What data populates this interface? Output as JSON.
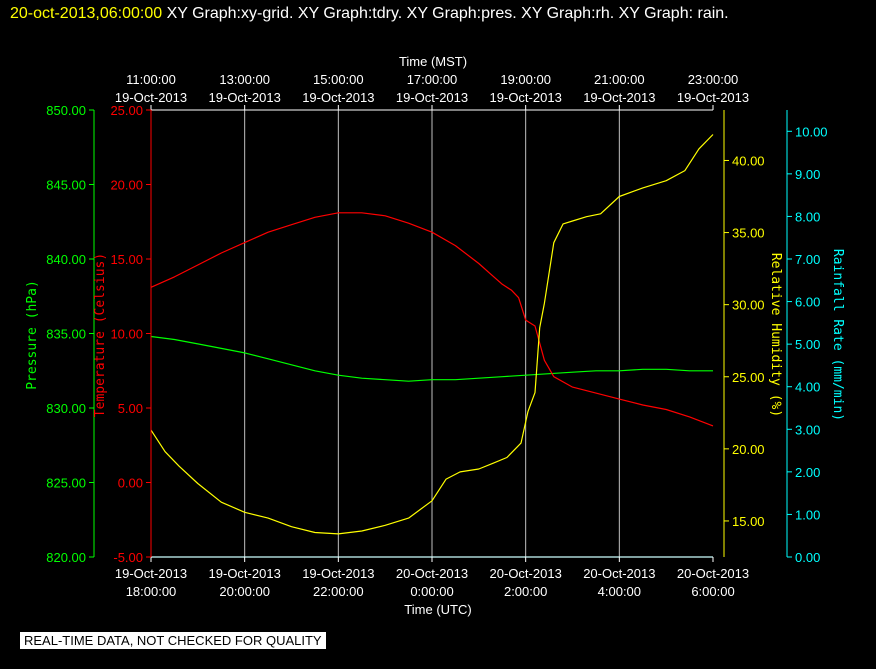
{
  "header": {
    "timestamp": "20-oct-2013,06:00:00",
    "title": " XY Graph:xy-grid.  XY Graph:tdry.  XY Graph:pres.  XY Graph:rh.  XY Graph: rain."
  },
  "disclaimer": "REAL-TIME DATA, NOT CHECKED FOR QUALITY",
  "colors": {
    "background": "#000000",
    "grid": "#c0c0c0",
    "pressure": "#00ff00",
    "temperature": "#ff0000",
    "humidity": "#ffff00",
    "rain": "#00ffff",
    "text": "#ffffff"
  },
  "chart_data": {
    "type": "line",
    "grid": true,
    "top_axis": {
      "label": "Time (MST)",
      "ticks": [
        [
          "11:00:00",
          "19-Oct-2013"
        ],
        [
          "13:00:00",
          "19-Oct-2013"
        ],
        [
          "15:00:00",
          "19-Oct-2013"
        ],
        [
          "17:00:00",
          "19-Oct-2013"
        ],
        [
          "19:00:00",
          "19-Oct-2013"
        ],
        [
          "21:00:00",
          "19-Oct-2013"
        ],
        [
          "23:00:00",
          "19-Oct-2013"
        ]
      ]
    },
    "bottom_axis": {
      "label": "Time (UTC)",
      "ticks": [
        [
          "19-Oct-2013",
          "18:00:00"
        ],
        [
          "19-Oct-2013",
          "20:00:00"
        ],
        [
          "19-Oct-2013",
          "22:00:00"
        ],
        [
          "20-Oct-2013",
          "0:00:00"
        ],
        [
          "20-Oct-2013",
          "2:00:00"
        ],
        [
          "20-Oct-2013",
          "4:00:00"
        ],
        [
          "20-Oct-2013",
          "6:00:00"
        ]
      ]
    },
    "x_unit": "hours since 19-Oct-2013 18:00:00 UTC",
    "xlim": [
      0,
      12
    ],
    "axes": {
      "pressure": {
        "label": "Pressure (hPa)",
        "ylim": [
          820,
          850
        ],
        "ticks": [
          "850.00",
          "845.00",
          "840.00",
          "835.00",
          "830.00",
          "825.00",
          "820.00"
        ]
      },
      "temperature": {
        "label": "Temperature (Celsius)",
        "ylim": [
          -5,
          25
        ],
        "ticks": [
          "25.00",
          "20.00",
          "15.00",
          "10.00",
          "5.00",
          "0.00",
          "-5.00"
        ]
      },
      "humidity": {
        "label": "Relative Humidity (%)",
        "ylim": [
          12.5,
          43.5
        ],
        "ticks": [
          "40.00",
          "35.00",
          "30.00",
          "25.00",
          "20.00",
          "15.00"
        ]
      },
      "rain": {
        "label": "Rainfall Rate (mm/min)",
        "ylim": [
          0,
          10.5
        ],
        "ticks": [
          "10.00",
          "9.00",
          "8.00",
          "7.00",
          "6.00",
          "5.00",
          "4.00",
          "3.00",
          "2.00",
          "1.00",
          "0.00"
        ]
      }
    },
    "series": [
      {
        "name": "pressure",
        "axis": "pressure",
        "x": [
          0,
          0.5,
          1,
          1.5,
          2,
          2.5,
          3,
          3.5,
          4,
          4.5,
          5,
          5.5,
          6,
          6.5,
          7,
          7.5,
          8,
          8.5,
          9,
          9.5,
          10,
          10.5,
          11,
          11.5,
          12
        ],
        "y": [
          834.8,
          834.6,
          834.3,
          834.0,
          833.7,
          833.3,
          832.9,
          832.5,
          832.2,
          832.0,
          831.9,
          831.8,
          831.9,
          831.9,
          832.0,
          832.1,
          832.2,
          832.3,
          832.4,
          832.5,
          832.5,
          832.6,
          832.6,
          832.5,
          832.5
        ]
      },
      {
        "name": "temperature",
        "axis": "temperature",
        "x": [
          0,
          0.5,
          1,
          1.5,
          2,
          2.5,
          3,
          3.5,
          4,
          4.5,
          5,
          5.5,
          6,
          6.5,
          7,
          7.25,
          7.5,
          7.7,
          7.85,
          8.0,
          8.2,
          8.4,
          8.6,
          9,
          9.5,
          10,
          10.5,
          11,
          11.5,
          12
        ],
        "y": [
          13.1,
          13.8,
          14.6,
          15.4,
          16.1,
          16.8,
          17.3,
          17.8,
          18.1,
          18.1,
          17.9,
          17.4,
          16.8,
          15.9,
          14.7,
          14.0,
          13.3,
          12.9,
          12.4,
          10.9,
          10.5,
          8.2,
          7.1,
          6.4,
          6.0,
          5.6,
          5.2,
          4.9,
          4.4,
          3.8
        ]
      },
      {
        "name": "relative humidity",
        "axis": "humidity",
        "x": [
          0,
          0.3,
          0.6,
          1,
          1.5,
          2,
          2.5,
          3,
          3.5,
          4,
          4.5,
          5,
          5.5,
          6,
          6.3,
          6.6,
          7,
          7.3,
          7.6,
          7.9,
          8.05,
          8.2,
          8.3,
          8.4,
          8.6,
          8.8,
          9.0,
          9.3,
          9.6,
          10,
          10.5,
          11,
          11.4,
          11.7,
          12
        ],
        "y": [
          21.3,
          19.8,
          18.8,
          17.6,
          16.3,
          15.6,
          15.2,
          14.6,
          14.2,
          14.1,
          14.3,
          14.7,
          15.2,
          16.4,
          17.9,
          18.4,
          18.6,
          19.0,
          19.4,
          20.4,
          22.6,
          23.9,
          28.4,
          30.1,
          34.3,
          35.6,
          35.8,
          36.1,
          36.3,
          37.5,
          38.1,
          38.6,
          39.3,
          40.8,
          41.8
        ]
      },
      {
        "name": "rainfall rate",
        "axis": "rain",
        "x": [
          0,
          12
        ],
        "y": [
          0.0,
          0.0
        ]
      }
    ]
  }
}
